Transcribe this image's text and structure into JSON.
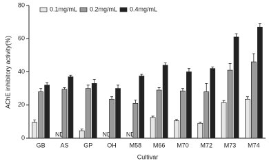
{
  "chart_data": {
    "type": "bar",
    "xlabel": "Cultivar",
    "ylabel": "AChE inhibitory activity(%)",
    "categories": [
      "GB",
      "AS",
      "GP",
      "OH",
      "M58",
      "M66",
      "M70",
      "M72",
      "M73",
      "M74"
    ],
    "series": [
      {
        "name": "0.1mg/mL",
        "color": "#e6e6e6",
        "values": [
          9.5,
          null,
          4.5,
          null,
          null,
          12.5,
          10.5,
          9,
          21.5,
          23.5
        ],
        "errors": [
          1.5,
          null,
          1,
          null,
          null,
          0.8,
          0.8,
          0.6,
          1.2,
          1.5
        ],
        "value_labels": [
          null,
          "ND",
          null,
          "ND",
          "ND",
          null,
          null,
          null,
          null,
          null
        ]
      },
      {
        "name": "0.2mg/mL",
        "color": "#9a9a9a",
        "values": [
          28,
          29.5,
          30,
          23.5,
          21,
          29,
          28.5,
          28,
          41,
          46
        ],
        "errors": [
          2,
          1,
          2,
          1.5,
          2,
          1.5,
          1.5,
          5,
          4,
          5
        ]
      },
      {
        "name": "0.4mg/mL",
        "color": "#222222",
        "values": [
          32,
          37,
          33,
          30,
          37.5,
          44,
          40,
          42,
          61,
          67
        ],
        "errors": [
          1.5,
          1,
          2.5,
          2,
          1,
          1.5,
          2,
          1,
          2,
          2
        ]
      }
    ],
    "ylim": [
      0,
      80
    ],
    "yticks": [
      0,
      20,
      40,
      60,
      80
    ],
    "legend": "top-left"
  }
}
